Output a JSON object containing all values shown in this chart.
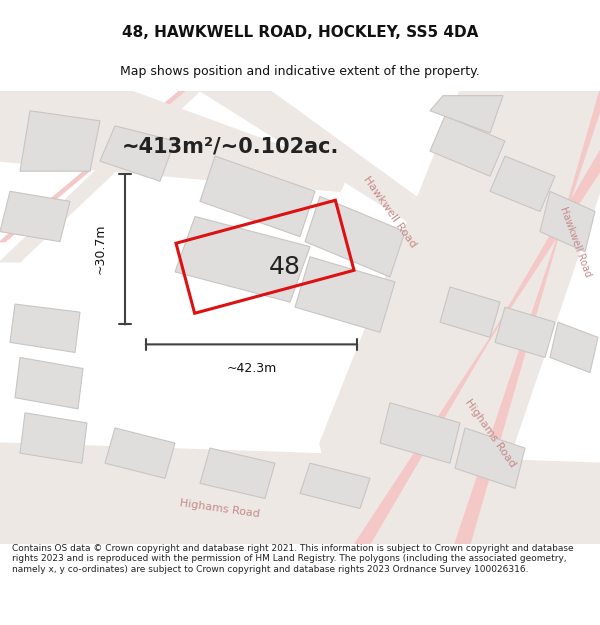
{
  "title": "48, HAWKWELL ROAD, HOCKLEY, SS5 4DA",
  "subtitle": "Map shows position and indicative extent of the property.",
  "area_text": "~413m²/~0.102ac.",
  "number_label": "48",
  "dim_width": "~42.3m",
  "dim_height": "~30.7m",
  "footer": "Contains OS data © Crown copyright and database right 2021. This information is subject to Crown copyright and database rights 2023 and is reproduced with the permission of HM Land Registry. The polygons (including the associated geometry, namely x, y co-ordinates) are subject to Crown copyright and database rights 2023 Ordnance Survey 100026316.",
  "bg_color": "#f0eeec",
  "map_bg": "#f5f3f1",
  "road_color_light": "#f5c8c8",
  "road_color_red": "#e05050",
  "building_fill": "#e0dedd",
  "building_edge": "#c8c5c3",
  "plot_edge_color": "#dd1111",
  "plot_fill_color": "none",
  "dim_line_color": "#404040",
  "title_color": "#111111",
  "footer_color": "#222222",
  "road_label_color": "#c08080",
  "map_area": [
    0.0,
    0.08,
    1.0,
    0.81
  ]
}
